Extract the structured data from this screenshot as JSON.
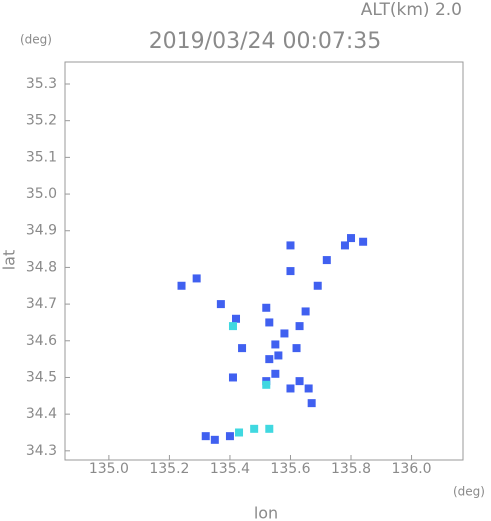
{
  "chart_data": {
    "type": "scatter",
    "title": "2019/03/24 00:07:35",
    "subtitle": "ALT(km) 2.0",
    "x_label": "lon",
    "y_label": "lat",
    "x_unit": "(deg)",
    "y_unit": "(deg)",
    "xlim": [
      134.855,
      136.17
    ],
    "ylim": [
      34.275,
      35.36
    ],
    "xticks": [
      {
        "value": 135,
        "label": "135.0"
      },
      135.2,
      135.4,
      135.6,
      135.8,
      {
        "value": 136,
        "label": "136.0"
      }
    ],
    "yticks": [
      34.3,
      34.4,
      34.5,
      34.6,
      34.7,
      34.8,
      34.9,
      {
        "value": 35,
        "label": "35.0"
      },
      35.1,
      35.2,
      35.3
    ],
    "series": [
      {
        "color": "#4060f0",
        "x": [
          135.8,
          135.84,
          135.78,
          135.6,
          135.72,
          135.6,
          135.29,
          135.24,
          135.69,
          135.37,
          135.52,
          135.65,
          135.42,
          135.53,
          135.63,
          135.58,
          135.44,
          135.55,
          135.53,
          135.56,
          135.62,
          135.55,
          135.52,
          135.63,
          135.6,
          135.66,
          135.67,
          135.41,
          135.32,
          135.35,
          135.4
        ],
        "y": [
          34.88,
          34.87,
          34.86,
          34.86,
          34.82,
          34.79,
          34.77,
          34.75,
          34.75,
          34.7,
          34.69,
          34.68,
          34.66,
          34.65,
          34.64,
          34.62,
          34.58,
          34.59,
          34.55,
          34.56,
          34.58,
          34.51,
          34.49,
          34.49,
          34.47,
          34.47,
          34.43,
          34.5,
          34.34,
          34.33,
          34.34
        ]
      },
      {
        "color": "#40d8e0",
        "x": [
          135.43,
          135.48,
          135.53,
          135.52,
          135.41
        ],
        "y": [
          34.35,
          34.36,
          34.36,
          34.48,
          34.64
        ]
      }
    ]
  }
}
